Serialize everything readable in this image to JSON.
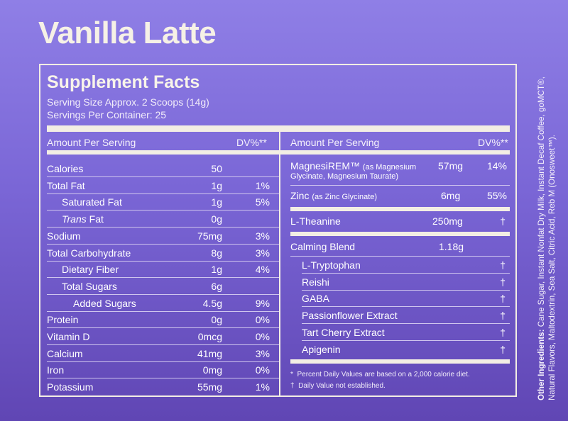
{
  "product_title": "Vanilla Latte",
  "facts": {
    "title": "Supplement Facts",
    "serving_size": "Serving Size Approx. 2 Scoops (14g)",
    "servings_per_container": "Servings Per Container: 25"
  },
  "header": {
    "amount_per_serving": "Amount Per Serving",
    "dv": "DV%**"
  },
  "left_rows": [
    {
      "name": "Calories",
      "amount": "50",
      "dv": "",
      "indent": 0
    },
    {
      "name": "Total Fat",
      "amount": "1g",
      "dv": "1%",
      "indent": 0
    },
    {
      "name": "Saturated Fat",
      "amount": "1g",
      "dv": "5%",
      "indent": 1
    },
    {
      "name_italic": "Trans",
      "name": " Fat",
      "amount": "0g",
      "dv": "",
      "indent": 1
    },
    {
      "name": "Sodium",
      "amount": "75mg",
      "dv": "3%",
      "indent": 0
    },
    {
      "name": "Total Carbohydrate",
      "amount": "8g",
      "dv": "3%",
      "indent": 0
    },
    {
      "name": "Dietary Fiber",
      "amount": "1g",
      "dv": "4%",
      "indent": 1
    },
    {
      "name": "Total Sugars",
      "amount": "6g",
      "dv": "",
      "indent": 1
    },
    {
      "name": "Added Sugars",
      "amount": "4.5g",
      "dv": "9%",
      "indent": 2
    },
    {
      "name": "Protein",
      "amount": "0g",
      "dv": "0%",
      "indent": 0
    },
    {
      "name": "Vitamin D",
      "amount": "0mcg",
      "dv": "0%",
      "indent": 0
    },
    {
      "name": "Calcium",
      "amount": "41mg",
      "dv": "3%",
      "indent": 0
    },
    {
      "name": "Iron",
      "amount": "0mg",
      "dv": "0%",
      "indent": 0
    },
    {
      "name": "Potassium",
      "amount": "55mg",
      "dv": "1%",
      "indent": 0
    }
  ],
  "right_rows": {
    "magnesirem": {
      "name": "MagnesiREM™",
      "detail_1": "(as Magnesium",
      "detail_2": "Glycinate, Magnesium Taurate)",
      "amount": "57mg",
      "dv": "14%"
    },
    "zinc": {
      "name": "Zinc",
      "detail": "(as Zinc Glycinate)",
      "amount": "6mg",
      "dv": "55%"
    },
    "theanine": {
      "name": "L-Theanine",
      "amount": "250mg",
      "dv": "†"
    },
    "calming_blend": {
      "name": "Calming Blend",
      "amount": "1.18g",
      "dv": ""
    },
    "blend_items": [
      {
        "name": "L-Tryptophan",
        "dv": "†"
      },
      {
        "name": "Reishi",
        "dv": "†"
      },
      {
        "name": "GABA",
        "dv": "†"
      },
      {
        "name": "Passionflower Extract",
        "dv": "†"
      },
      {
        "name": "Tart Cherry Extract",
        "dv": "†"
      },
      {
        "name": "Apigenin",
        "dv": "†"
      }
    ]
  },
  "footnotes": {
    "star_symbol": "*",
    "star_text": "Percent Daily Values are based on a 2,000 calorie diet.",
    "dagger_symbol": "†",
    "dagger_text": "Daily Value not established."
  },
  "ingredients": {
    "label": "Other Ingredients:",
    "text": " Cane Sugar, Instant Nonfat Dry Milk, Instant Decaf Coffee, goMCT®, Natural Flavors, Maltodextrin, Sea Salt, Citric Acid, Reb M (Onosweet™)."
  },
  "colors": {
    "background_top": "#8f7fe6",
    "background_bottom": "#6046b4",
    "panel_line": "#f3eee4",
    "title_text": "#f6f1e6"
  }
}
